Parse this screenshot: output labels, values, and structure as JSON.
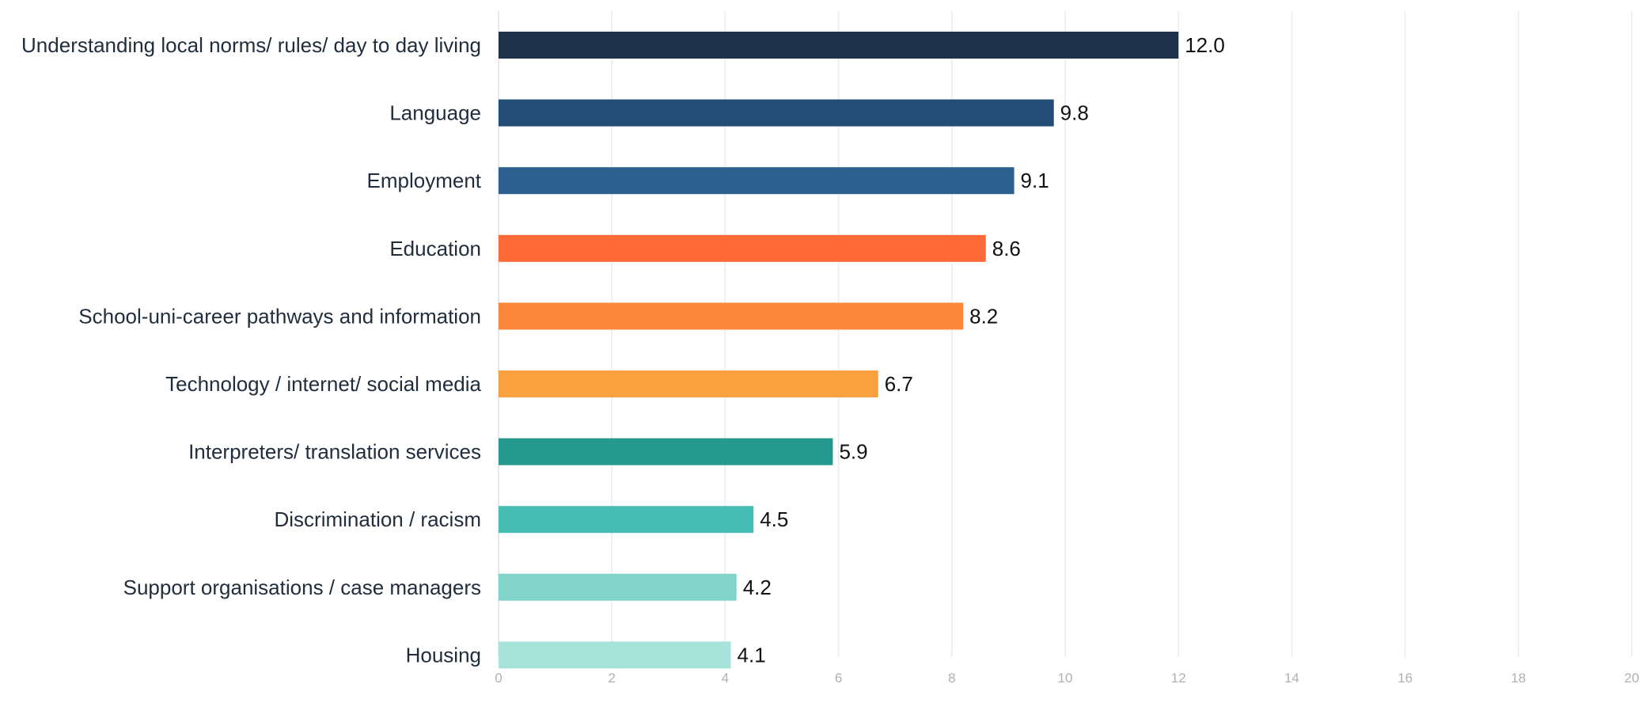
{
  "chart_data": {
    "type": "bar",
    "orientation": "horizontal",
    "categories": [
      "Understanding local norms/ rules/ day to day living",
      "Language",
      "Employment",
      "Education",
      "School-uni-career pathways and information",
      "Technology / internet/ social media",
      "Interpreters/ translation services",
      "Discrimination / racism",
      "Support organisations / case managers",
      "Housing"
    ],
    "values": [
      12.0,
      9.8,
      9.1,
      8.6,
      8.2,
      6.7,
      5.9,
      4.5,
      4.2,
      4.1
    ],
    "value_labels": [
      "12.0",
      "9.8",
      "9.1",
      "8.6",
      "8.2",
      "6.7",
      "5.9",
      "4.5",
      "4.2",
      "4.1"
    ],
    "colors": [
      "#1e3349",
      "#234c77",
      "#2d5f90",
      "#fe6a38",
      "#fb853b",
      "#f9a03f",
      "#26998f",
      "#45beb3",
      "#80d4c9",
      "#a7e3da"
    ],
    "xlim": [
      0,
      20
    ],
    "xticks": [
      0,
      2,
      4,
      6,
      8,
      10,
      12,
      14,
      16,
      18,
      20
    ],
    "grid": true,
    "title": "",
    "xlabel": "",
    "ylabel": "",
    "legend": "none"
  }
}
